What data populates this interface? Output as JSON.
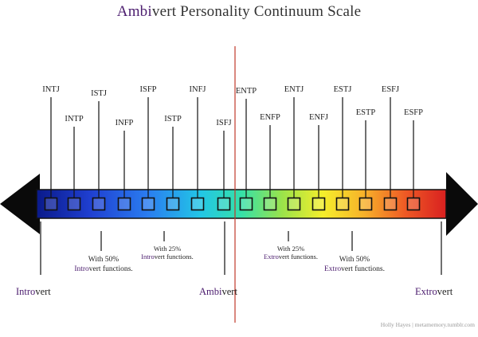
{
  "title": {
    "prefix": "Ambi",
    "rest": "vert Personality Continuum Scale"
  },
  "types": [
    {
      "label": "INTJ"
    },
    {
      "label": "INTP"
    },
    {
      "label": "ISTJ"
    },
    {
      "label": "INFP"
    },
    {
      "label": "ISFP"
    },
    {
      "label": "ISTP"
    },
    {
      "label": "INFJ"
    },
    {
      "label": "ISFJ"
    },
    {
      "label": "ENTP"
    },
    {
      "label": "ENFP"
    },
    {
      "label": "ENTJ"
    },
    {
      "label": "ENFJ"
    },
    {
      "label": "ESTJ"
    },
    {
      "label": "ESTP"
    },
    {
      "label": "ESFJ"
    },
    {
      "label": "ESFP"
    }
  ],
  "annotations": {
    "introvert_50": {
      "line1": "With 50%",
      "line2_prefix": "Intro",
      "line2_rest": "vert functions."
    },
    "introvert_25": {
      "line1": "With 25%",
      "line2_prefix": "Intro",
      "line2_rest": "vert functions."
    },
    "extrovert_25": {
      "line1": "With 25%",
      "line2_prefix": "Extro",
      "line2_rest": "vert functions."
    },
    "extrovert_50": {
      "line1": "With 50%",
      "line2_prefix": "Extro",
      "line2_rest": "vert functions."
    }
  },
  "scale_labels": {
    "introvert": {
      "prefix": "Intro",
      "rest": "vert"
    },
    "ambivert": {
      "prefix": "Ambi",
      "rest": "vert"
    },
    "extrovert": {
      "prefix": "Extro",
      "rest": "vert"
    }
  },
  "credit": "Holly Hayes | metamemory.tumblr.com",
  "colors": {
    "purple_accent": "#4b1c6e",
    "center_line": "#c0392b",
    "arrow": "#0a0a0a",
    "gradient": [
      "#0a1a8a",
      "#1f3fd0",
      "#2a7cf0",
      "#22c6e6",
      "#35e0a8",
      "#9be34a",
      "#f5ee2b",
      "#f7b12a",
      "#ee5a25",
      "#d92020"
    ]
  }
}
